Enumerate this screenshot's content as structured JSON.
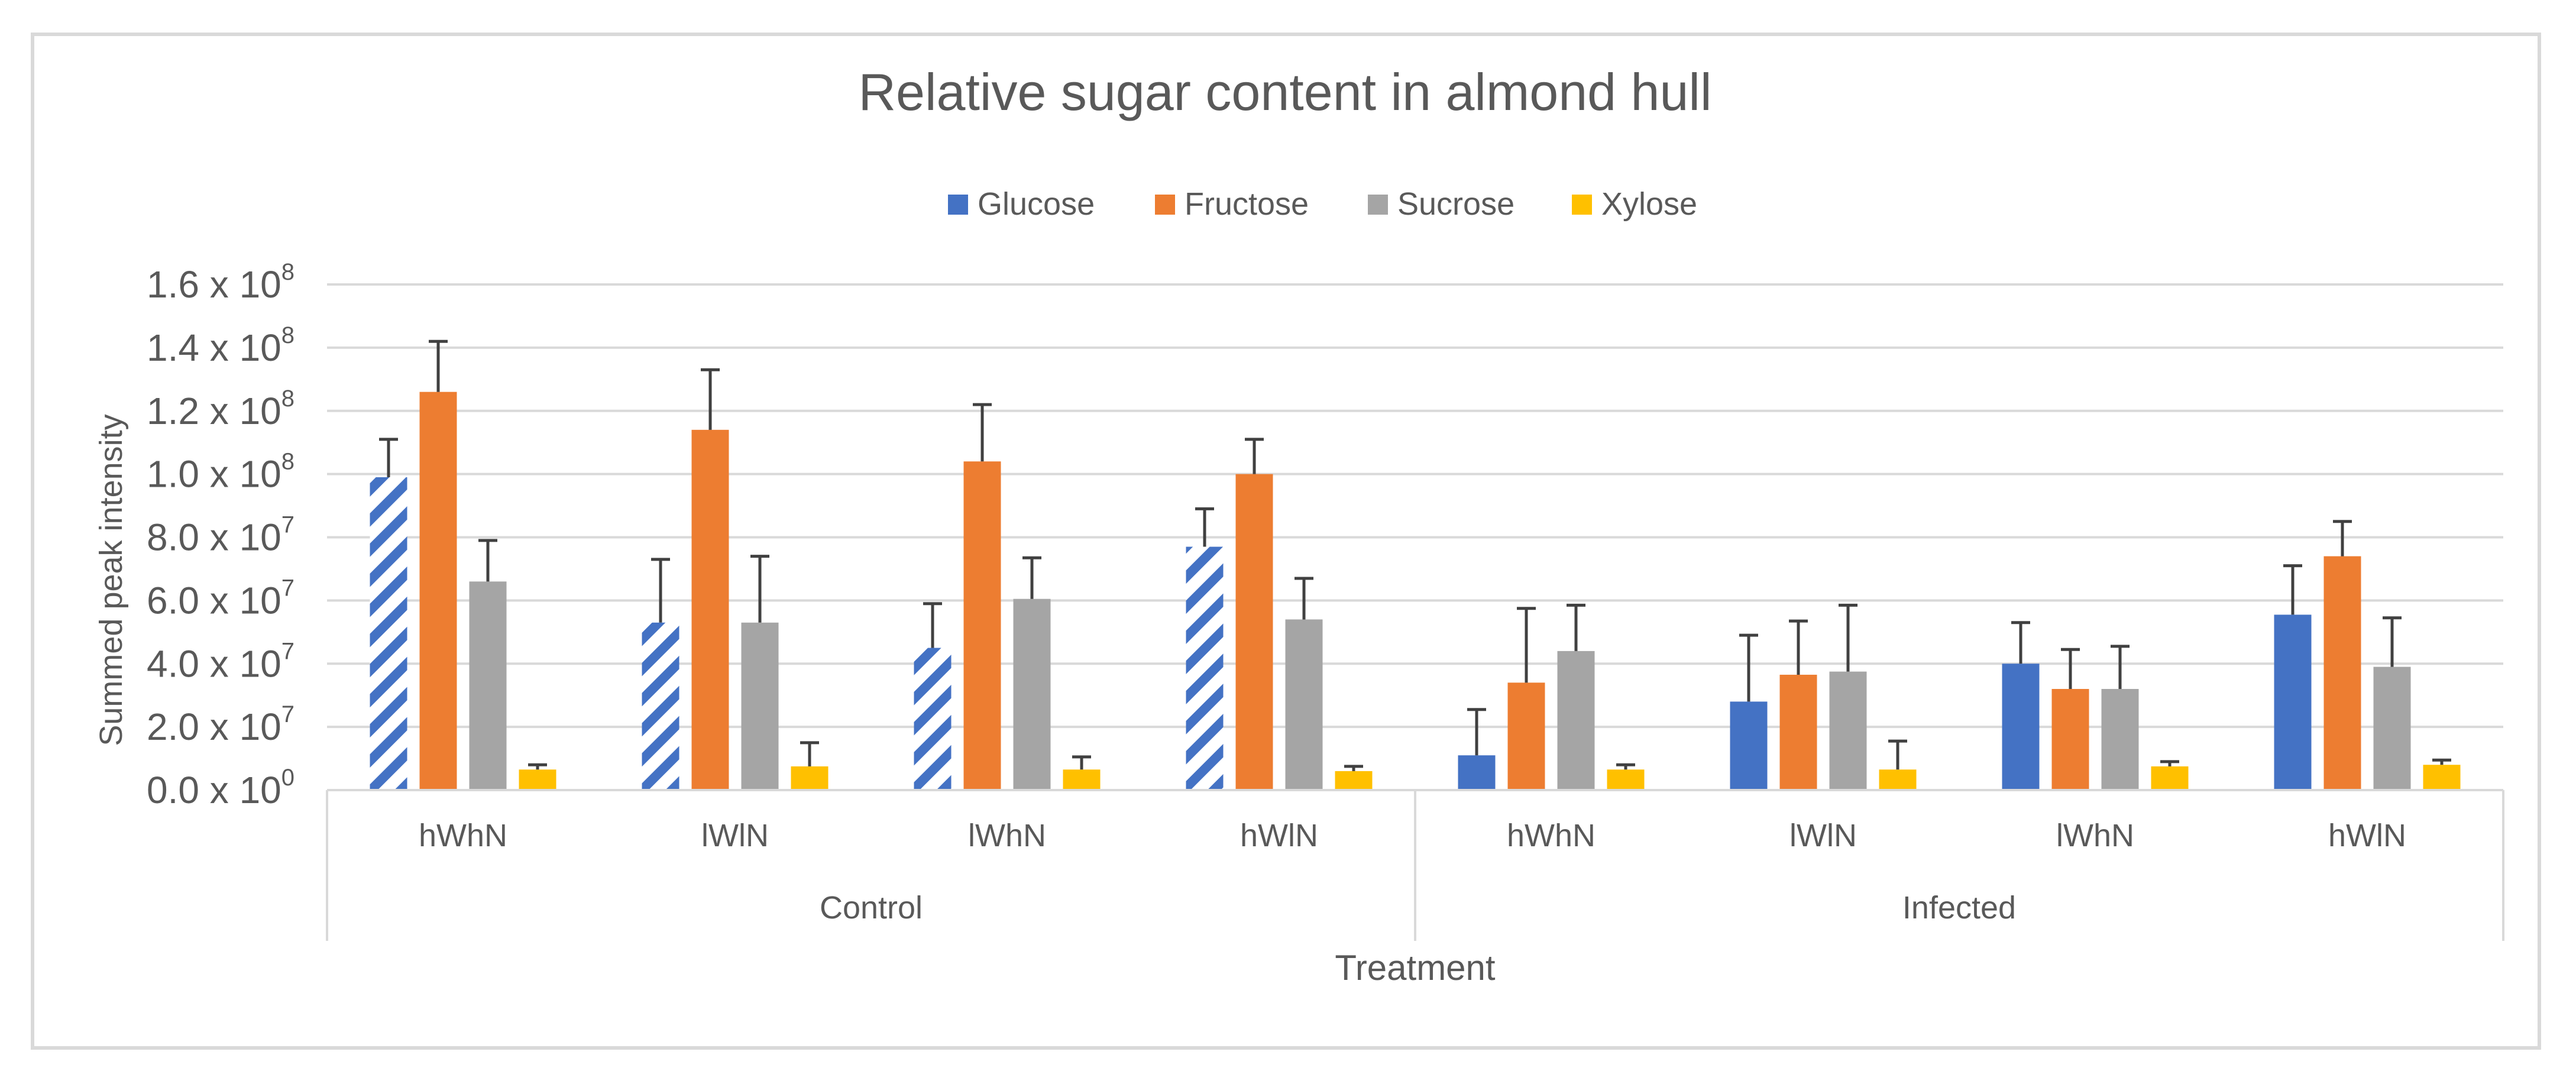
{
  "chart_data": {
    "type": "bar",
    "title": "Relative sugar content in almond hull",
    "xlabel": "Treatment",
    "ylabel": "Summed peak intensity",
    "ylim": [
      0,
      160000000
    ],
    "y_ticks": [
      {
        "value": 0,
        "mantissa": "0.0 x 10",
        "exp": "0"
      },
      {
        "value": 20000000,
        "mantissa": "2.0 x 10",
        "exp": "7"
      },
      {
        "value": 40000000,
        "mantissa": "4.0 x 10",
        "exp": "7"
      },
      {
        "value": 60000000,
        "mantissa": "6.0 x 10",
        "exp": "7"
      },
      {
        "value": 80000000,
        "mantissa": "8.0 x 10",
        "exp": "7"
      },
      {
        "value": 100000000,
        "mantissa": "1.0 x 10",
        "exp": "8"
      },
      {
        "value": 120000000,
        "mantissa": "1.2 x 10",
        "exp": "8"
      },
      {
        "value": 140000000,
        "mantissa": "1.4 x 10",
        "exp": "8"
      },
      {
        "value": 160000000,
        "mantissa": "1.6 x 10",
        "exp": "8"
      }
    ],
    "grid": true,
    "legend_position": "top-center",
    "groups": [
      {
        "label": "Control",
        "categories": [
          "hWhN",
          "lWlN",
          "lWhN",
          "hWlN"
        ]
      },
      {
        "label": "Infected",
        "categories": [
          "hWhN",
          "lWlN",
          "lWhN",
          "hWlN"
        ]
      }
    ],
    "series": [
      {
        "name": "Glucose",
        "color": "#4472c4",
        "values": [
          99000000,
          53000000,
          45000000,
          77000000,
          11000000,
          28000000,
          40000000,
          55500000
        ],
        "errors": [
          12000000,
          20000000,
          14000000,
          12000000,
          14500000,
          21000000,
          13000000,
          15500000
        ],
        "hatched": [
          true,
          true,
          true,
          true,
          false,
          false,
          false,
          false
        ]
      },
      {
        "name": "Fructose",
        "color": "#ed7d31",
        "values": [
          126000000,
          114000000,
          104000000,
          100000000,
          34000000,
          36500000,
          32000000,
          74000000
        ],
        "errors": [
          16000000,
          19000000,
          18000000,
          11000000,
          23500000,
          17000000,
          12500000,
          11000000
        ],
        "hatched": [
          false,
          false,
          false,
          false,
          false,
          false,
          false,
          false
        ]
      },
      {
        "name": "Sucrose",
        "color": "#a5a5a5",
        "values": [
          66000000,
          53000000,
          60500000,
          54000000,
          44000000,
          37500000,
          32000000,
          39000000
        ],
        "errors": [
          13000000,
          21000000,
          13000000,
          13000000,
          14500000,
          21000000,
          13500000,
          15500000
        ],
        "hatched": [
          false,
          false,
          false,
          false,
          false,
          false,
          false,
          false
        ]
      },
      {
        "name": "Xylose",
        "color": "#ffc000",
        "values": [
          6500000,
          7500000,
          6500000,
          6000000,
          6500000,
          6500000,
          7500000,
          8000000
        ],
        "errors": [
          1500000,
          7500000,
          4000000,
          1500000,
          1500000,
          9000000,
          1500000,
          1500000
        ],
        "hatched": [
          false,
          false,
          false,
          false,
          false,
          false,
          false,
          false
        ]
      }
    ]
  }
}
